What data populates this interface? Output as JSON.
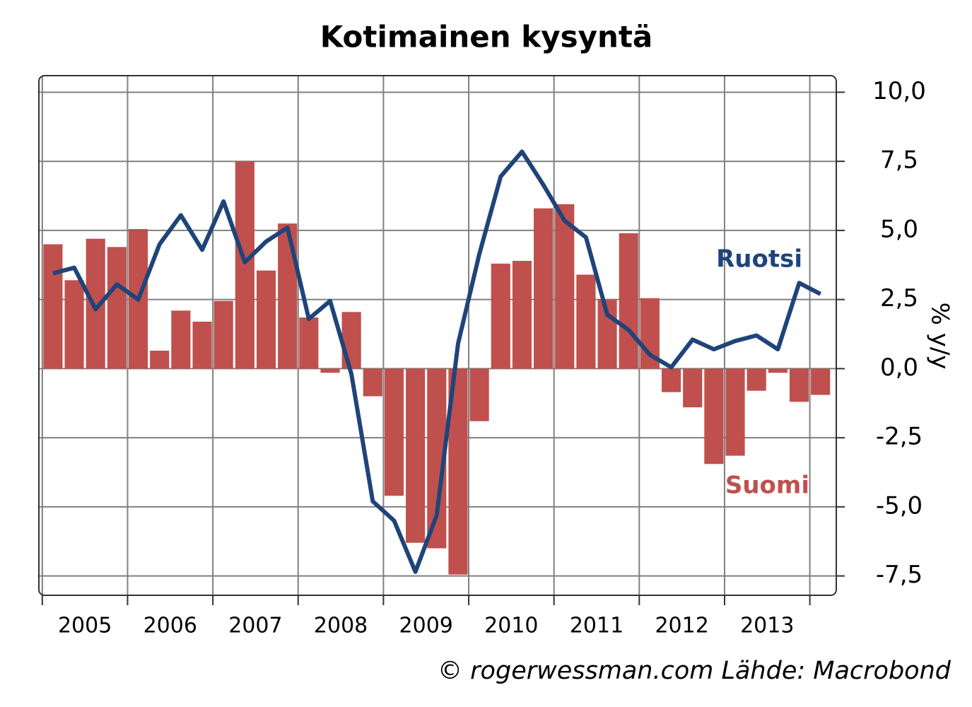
{
  "chart_data": {
    "type": "bar",
    "title": "Kotimainen kysyntä",
    "ylabel": "% y/y",
    "source": "© rogerwessman.com Lähde: Macrobond",
    "x": [
      2005.125,
      2005.375,
      2005.625,
      2005.875,
      2006.125,
      2006.375,
      2006.625,
      2006.875,
      2007.125,
      2007.375,
      2007.625,
      2007.875,
      2008.125,
      2008.375,
      2008.625,
      2008.875,
      2009.125,
      2009.375,
      2009.625,
      2009.875,
      2010.125,
      2010.375,
      2010.625,
      2010.875,
      2011.125,
      2011.375,
      2011.625,
      2011.875,
      2012.125,
      2012.375,
      2012.625,
      2012.875,
      2013.125,
      2013.375,
      2013.625,
      2013.875,
      2014.125
    ],
    "xlim": [
      2004.96,
      2014.31
    ],
    "xticks": [
      2005,
      2006,
      2007,
      2008,
      2009,
      2010,
      2011,
      2012,
      2013,
      2014
    ],
    "ylim": [
      -8.2,
      10.6
    ],
    "yticks": [
      {
        "value": 10,
        "label": "10,0"
      },
      {
        "value": 7.5,
        "label": "7,5"
      },
      {
        "value": 5,
        "label": "5,0"
      },
      {
        "value": 2.5,
        "label": "2,5"
      },
      {
        "value": 0,
        "label": "0,0"
      },
      {
        "value": -2.5,
        "label": "-2,5"
      },
      {
        "value": -5,
        "label": "-5,0"
      },
      {
        "value": -7.5,
        "label": "-7,5"
      }
    ],
    "grid": true,
    "series": [
      {
        "name": "Suomi",
        "type": "bar",
        "color": "#c0504d",
        "values": [
          4.5,
          3.2,
          4.7,
          4.4,
          5.05,
          0.65,
          2.1,
          1.7,
          2.45,
          7.5,
          3.55,
          5.25,
          1.85,
          -0.15,
          2.05,
          -1.0,
          -4.6,
          -6.3,
          -6.5,
          -7.45,
          -1.9,
          3.8,
          3.9,
          5.8,
          5.95,
          3.4,
          2.5,
          4.9,
          2.55,
          -0.85,
          -1.4,
          -3.45,
          -3.15,
          -0.8,
          -0.15,
          -1.2,
          -0.95
        ]
      },
      {
        "name": "Ruotsi",
        "type": "line",
        "color": "#1f4479",
        "values": [
          3.45,
          3.65,
          2.15,
          3.05,
          2.5,
          4.5,
          5.55,
          4.3,
          6.05,
          3.85,
          4.6,
          5.1,
          1.8,
          2.45,
          -0.2,
          -4.8,
          -5.5,
          -7.35,
          -5.3,
          0.9,
          4.15,
          6.95,
          7.85,
          6.65,
          5.35,
          4.75,
          1.95,
          1.4,
          0.5,
          0.05,
          1.05,
          0.7,
          1.0,
          1.2,
          0.7,
          3.1,
          2.7
        ]
      }
    ]
  }
}
